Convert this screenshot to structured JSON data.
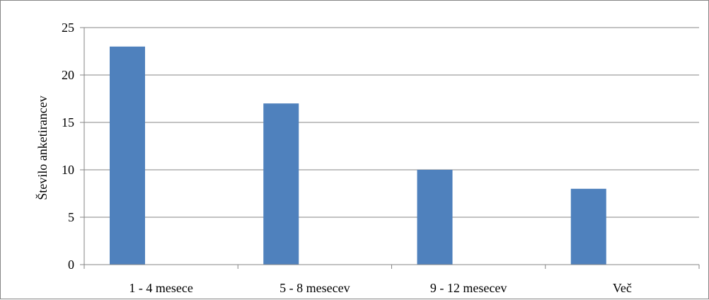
{
  "chart_data": {
    "type": "bar",
    "categories": [
      "1 - 4 mesece",
      "5 - 8 mesecev",
      "9 - 12 mesecev",
      "Več"
    ],
    "values": [
      23,
      17,
      10,
      8
    ],
    "title": "",
    "xlabel": "",
    "ylabel": "Število anketirancev",
    "ylim": [
      0,
      25
    ],
    "yticks": [
      "0",
      "5",
      "10",
      "15",
      "20",
      "25"
    ],
    "grid": true,
    "legend": "none",
    "bar_color": "#4F81BD",
    "grid_color": "#868686"
  }
}
